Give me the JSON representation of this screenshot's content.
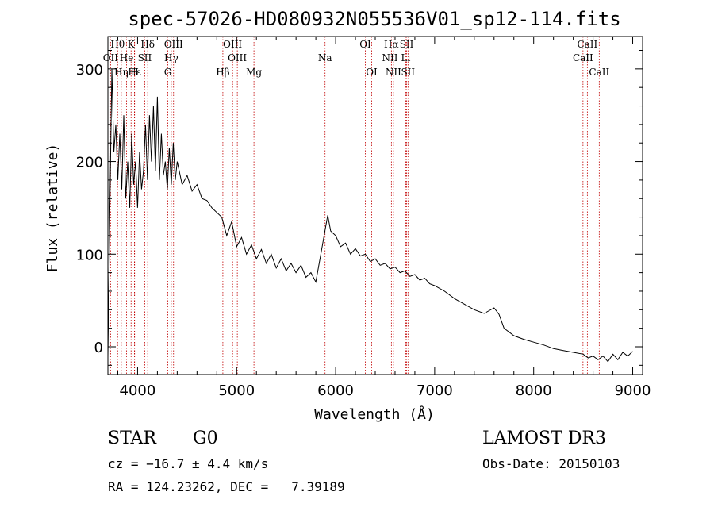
{
  "chart_data": {
    "type": "line",
    "title": "spec-57026-HD080932N055536V01_sp12-114.fits",
    "xlabel": "Wavelength (Å)",
    "ylabel": "Flux (relative)",
    "xlim": [
      3700,
      9100
    ],
    "ylim": [
      -30,
      335
    ],
    "xticks": [
      4000,
      5000,
      6000,
      7000,
      8000,
      9000
    ],
    "yticks": [
      0,
      100,
      200,
      300
    ],
    "xtick_labels": [
      "4000",
      "5000",
      "6000",
      "7000",
      "8000",
      "9000"
    ],
    "ytick_labels": [
      "0",
      "100",
      "200",
      "300"
    ],
    "series": [
      {
        "name": "flux",
        "points": [
          [
            3700,
            -10
          ],
          [
            3720,
            150
          ],
          [
            3740,
            300
          ],
          [
            3760,
            210
          ],
          [
            3780,
            240
          ],
          [
            3800,
            180
          ],
          [
            3820,
            230
          ],
          [
            3840,
            170
          ],
          [
            3860,
            250
          ],
          [
            3880,
            160
          ],
          [
            3900,
            200
          ],
          [
            3920,
            150
          ],
          [
            3940,
            230
          ],
          [
            3960,
            175
          ],
          [
            3980,
            200
          ],
          [
            4000,
            150
          ],
          [
            4020,
            210
          ],
          [
            4040,
            170
          ],
          [
            4060,
            190
          ],
          [
            4080,
            240
          ],
          [
            4100,
            180
          ],
          [
            4120,
            250
          ],
          [
            4140,
            200
          ],
          [
            4160,
            260
          ],
          [
            4180,
            190
          ],
          [
            4200,
            270
          ],
          [
            4220,
            180
          ],
          [
            4240,
            230
          ],
          [
            4260,
            185
          ],
          [
            4280,
            200
          ],
          [
            4300,
            170
          ],
          [
            4320,
            215
          ],
          [
            4340,
            175
          ],
          [
            4360,
            220
          ],
          [
            4380,
            180
          ],
          [
            4400,
            200
          ],
          [
            4450,
            175
          ],
          [
            4500,
            185
          ],
          [
            4550,
            168
          ],
          [
            4600,
            175
          ],
          [
            4650,
            160
          ],
          [
            4700,
            158
          ],
          [
            4750,
            150
          ],
          [
            4800,
            145
          ],
          [
            4850,
            140
          ],
          [
            4900,
            120
          ],
          [
            4950,
            135
          ],
          [
            5000,
            108
          ],
          [
            5050,
            118
          ],
          [
            5100,
            100
          ],
          [
            5150,
            110
          ],
          [
            5200,
            95
          ],
          [
            5250,
            105
          ],
          [
            5300,
            90
          ],
          [
            5350,
            100
          ],
          [
            5400,
            85
          ],
          [
            5450,
            95
          ],
          [
            5500,
            82
          ],
          [
            5550,
            90
          ],
          [
            5600,
            80
          ],
          [
            5650,
            88
          ],
          [
            5700,
            75
          ],
          [
            5750,
            80
          ],
          [
            5800,
            70
          ],
          [
            5850,
            100
          ],
          [
            5900,
            130
          ],
          [
            5920,
            142
          ],
          [
            5950,
            125
          ],
          [
            6000,
            120
          ],
          [
            6050,
            108
          ],
          [
            6100,
            112
          ],
          [
            6150,
            100
          ],
          [
            6200,
            106
          ],
          [
            6250,
            98
          ],
          [
            6300,
            100
          ],
          [
            6350,
            92
          ],
          [
            6400,
            95
          ],
          [
            6450,
            88
          ],
          [
            6500,
            90
          ],
          [
            6550,
            84
          ],
          [
            6600,
            86
          ],
          [
            6650,
            80
          ],
          [
            6700,
            82
          ],
          [
            6750,
            76
          ],
          [
            6800,
            78
          ],
          [
            6850,
            72
          ],
          [
            6900,
            74
          ],
          [
            6950,
            68
          ],
          [
            7000,
            66
          ],
          [
            7100,
            60
          ],
          [
            7200,
            52
          ],
          [
            7300,
            46
          ],
          [
            7400,
            40
          ],
          [
            7500,
            36
          ],
          [
            7600,
            42
          ],
          [
            7650,
            35
          ],
          [
            7700,
            20
          ],
          [
            7800,
            12
          ],
          [
            7900,
            8
          ],
          [
            8000,
            5
          ],
          [
            8100,
            2
          ],
          [
            8200,
            -2
          ],
          [
            8300,
            -4
          ],
          [
            8400,
            -6
          ],
          [
            8500,
            -8
          ],
          [
            8550,
            -12
          ],
          [
            8600,
            -10
          ],
          [
            8650,
            -14
          ],
          [
            8700,
            -10
          ],
          [
            8750,
            -16
          ],
          [
            8800,
            -8
          ],
          [
            8850,
            -14
          ],
          [
            8900,
            -6
          ],
          [
            8950,
            -10
          ],
          [
            9000,
            -5
          ]
        ]
      }
    ],
    "lines": [
      {
        "label": "Hθ",
        "x": 3798,
        "row": 0
      },
      {
        "label": "K",
        "x": 3934,
        "row": 0
      },
      {
        "label": "Hδ",
        "x": 4102,
        "row": 0
      },
      {
        "label": "OIII",
        "x": 4363,
        "row": 0
      },
      {
        "label": "OIII",
        "x": 4959,
        "row": 0
      },
      {
        "label": "OI",
        "x": 6300,
        "row": 0
      },
      {
        "label": "Hα",
        "x": 6563,
        "row": 0
      },
      {
        "label": "SII",
        "x": 6717,
        "row": 0
      },
      {
        "label": "CaII",
        "x": 8542,
        "row": 0
      },
      {
        "label": "OII",
        "x": 3727,
        "row": 1
      },
      {
        "label": "He",
        "x": 3889,
        "row": 1
      },
      {
        "label": "SII",
        "x": 4072,
        "row": 1
      },
      {
        "label": "Hγ",
        "x": 4340,
        "row": 1
      },
      {
        "label": "OIII",
        "x": 5007,
        "row": 1
      },
      {
        "label": "Na",
        "x": 5893,
        "row": 1
      },
      {
        "label": "NII",
        "x": 6548,
        "row": 1
      },
      {
        "label": "Li",
        "x": 6708,
        "row": 1
      },
      {
        "label": "CaII",
        "x": 8498,
        "row": 1
      },
      {
        "label": "Hε",
        "x": 3970,
        "row": 2
      },
      {
        "label": "Hη",
        "x": 3835,
        "row": 2
      },
      {
        "label": "H",
        "x": 3968,
        "row": 2
      },
      {
        "label": "G",
        "x": 4305,
        "row": 2
      },
      {
        "label": "Hβ",
        "x": 4861,
        "row": 2
      },
      {
        "label": "Mg",
        "x": 5175,
        "row": 2
      },
      {
        "label": "OI",
        "x": 6364,
        "row": 2
      },
      {
        "label": "NII",
        "x": 6583,
        "row": 2
      },
      {
        "label": "SII",
        "x": 6731,
        "row": 2
      },
      {
        "label": "CaII",
        "x": 8662,
        "row": 2
      }
    ]
  },
  "info": {
    "class_label": "STAR",
    "subclass": "G0",
    "survey": "LAMOST DR3",
    "cz": "cz = −16.7 ± 4.4 km/s",
    "obs_date": "Obs-Date: 20150103",
    "radec": "RA = 124.23262, DEC =   7.39189"
  }
}
